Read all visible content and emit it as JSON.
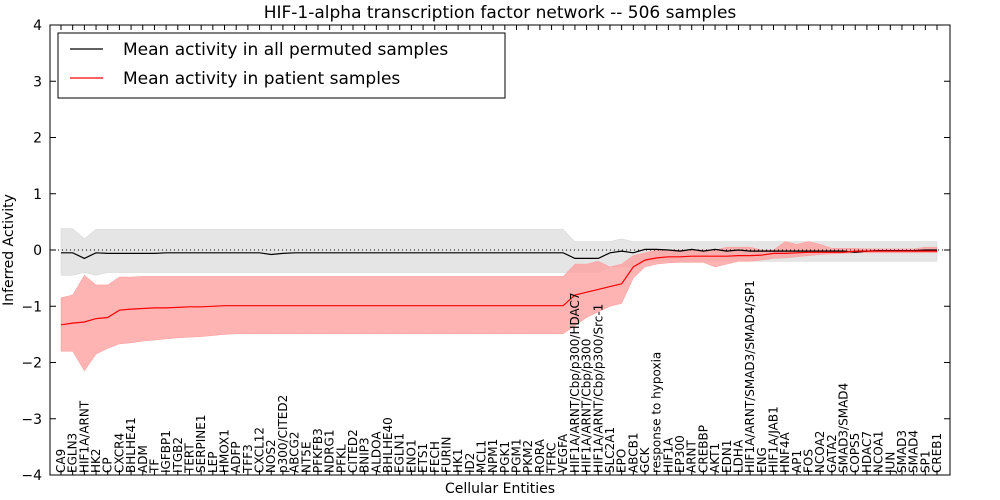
{
  "chart_data": {
    "type": "line",
    "title": "HIF-1-alpha transcription factor network -- 506 samples",
    "xlabel": "Cellular Entities",
    "ylabel": "Inferred Activity",
    "ylim": [
      -4,
      4
    ],
    "yticks": [
      "−4",
      "−3",
      "−2",
      "−1",
      "0",
      "1",
      "2",
      "3",
      "4"
    ],
    "legend_position": "top-left",
    "categories": [
      "CA9",
      "EGLN3",
      "HIF1A/ARNT",
      "HK2",
      "CP",
      "CXCR4",
      "BHLHE41",
      "ADM",
      "TF",
      "IGFBP1",
      "ITGB2",
      "TERT",
      "SERPINE1",
      "LEP",
      "HMOX1",
      "ADFP",
      "TFF3",
      "CXCL12",
      "NOS2",
      "p300/CITED2",
      "ABCG2",
      "NT5E",
      "PFKFB3",
      "NDRG1",
      "PFKL",
      "CITED2",
      "BNIP3",
      "ALDOA",
      "BHLHE40",
      "EGLN1",
      "ENO1",
      "ETS1",
      "FECH",
      "FURIN",
      "HK1",
      "ID2",
      "MCL1",
      "NPM1",
      "PGK1",
      "PGM1",
      "PKM2",
      "RORA",
      "TFRC",
      "VEGFA",
      "HIF1A/ARNT/Cbp/p300/HDAC7",
      "HIF1A/ARNT/Cbp/p300",
      "HIF1A/ARNT/Cbp/p300/Src-1",
      "SLC2A1",
      "EPO",
      "ABCB1",
      "GCK",
      "response to hypoxia",
      "HIF1A",
      "EP300",
      "ARNT",
      "CREBBP",
      "AKT1",
      "EDN1",
      "LDHA",
      "HIF1A/ARNT/SMAD3/SMAD4/SP1",
      "ENG",
      "HIF1A/JAB1",
      "HNF4A",
      "AP1",
      "FOS",
      "NCOA2",
      "GATA2",
      "SMAD3/SMAD4",
      "COPS5",
      "HDAC7",
      "NCOA1",
      "JUN",
      "SMAD3",
      "SMAD4",
      "SP1",
      "CREB1"
    ],
    "series": [
      {
        "name": "Mean activity in all permuted samples",
        "color": "#000000",
        "band_color": "#d3d3d3",
        "values": [
          -0.05,
          -0.05,
          -0.15,
          -0.05,
          -0.06,
          -0.06,
          -0.06,
          -0.06,
          -0.06,
          -0.05,
          -0.05,
          -0.05,
          -0.05,
          -0.05,
          -0.05,
          -0.05,
          -0.05,
          -0.05,
          -0.08,
          -0.06,
          -0.05,
          -0.05,
          -0.05,
          -0.05,
          -0.05,
          -0.05,
          -0.05,
          -0.05,
          -0.05,
          -0.05,
          -0.05,
          -0.05,
          -0.05,
          -0.05,
          -0.05,
          -0.05,
          -0.05,
          -0.05,
          -0.05,
          -0.05,
          -0.05,
          -0.05,
          -0.05,
          -0.05,
          -0.15,
          -0.15,
          -0.15,
          -0.05,
          -0.02,
          -0.05,
          0.01,
          0.01,
          0.0,
          -0.02,
          0.01,
          -0.02,
          0.01,
          -0.02,
          0.0,
          -0.02,
          -0.02,
          -0.02,
          -0.02,
          -0.02,
          -0.02,
          -0.02,
          -0.02,
          -0.02,
          -0.04,
          -0.02,
          -0.01,
          -0.01,
          -0.01,
          -0.01,
          0.0,
          0.0
        ],
        "lower": [
          -0.45,
          -0.45,
          -0.4,
          -0.45,
          -0.4,
          -0.4,
          -0.4,
          -0.4,
          -0.4,
          -0.4,
          -0.4,
          -0.4,
          -0.4,
          -0.4,
          -0.4,
          -0.4,
          -0.4,
          -0.4,
          -0.4,
          -0.4,
          -0.4,
          -0.4,
          -0.4,
          -0.4,
          -0.4,
          -0.4,
          -0.4,
          -0.4,
          -0.4,
          -0.4,
          -0.4,
          -0.4,
          -0.4,
          -0.4,
          -0.4,
          -0.4,
          -0.4,
          -0.4,
          -0.4,
          -0.4,
          -0.4,
          -0.4,
          -0.4,
          -0.4,
          -0.4,
          -0.4,
          -0.4,
          -0.3,
          -0.3,
          -0.3,
          -0.2,
          -0.2,
          -0.2,
          -0.2,
          -0.2,
          -0.2,
          -0.2,
          -0.2,
          -0.2,
          -0.2,
          -0.2,
          -0.2,
          -0.2,
          -0.2,
          -0.2,
          -0.2,
          -0.2,
          -0.2,
          -0.2,
          -0.2,
          -0.2,
          -0.2,
          -0.2,
          -0.2,
          -0.2,
          -0.2
        ],
        "upper": [
          0.38,
          0.38,
          0.2,
          0.37,
          0.37,
          0.37,
          0.37,
          0.37,
          0.37,
          0.37,
          0.37,
          0.37,
          0.37,
          0.37,
          0.37,
          0.37,
          0.37,
          0.37,
          0.37,
          0.37,
          0.37,
          0.37,
          0.37,
          0.37,
          0.37,
          0.37,
          0.37,
          0.37,
          0.37,
          0.37,
          0.37,
          0.37,
          0.37,
          0.37,
          0.37,
          0.37,
          0.37,
          0.37,
          0.37,
          0.37,
          0.37,
          0.37,
          0.37,
          0.37,
          0.15,
          0.15,
          0.15,
          0.15,
          0.2,
          0.15,
          0.15,
          0.15,
          0.15,
          0.15,
          0.15,
          0.15,
          0.15,
          0.15,
          0.15,
          0.15,
          0.15,
          0.15,
          0.15,
          0.15,
          0.15,
          0.15,
          0.15,
          0.15,
          0.15,
          0.15,
          0.15,
          0.15,
          0.15,
          0.15,
          0.15,
          0.15
        ]
      },
      {
        "name": "Mean activity in patient samples",
        "color": "#ff0000",
        "band_color": "#ff9b9b",
        "values": [
          -1.33,
          -1.3,
          -1.28,
          -1.22,
          -1.2,
          -1.07,
          -1.05,
          -1.04,
          -1.03,
          -1.03,
          -1.02,
          -1.01,
          -1.01,
          -1.0,
          -0.99,
          -0.99,
          -0.99,
          -0.99,
          -0.99,
          -0.99,
          -0.99,
          -0.99,
          -0.99,
          -0.99,
          -0.99,
          -0.99,
          -0.99,
          -0.99,
          -0.99,
          -0.99,
          -0.99,
          -0.99,
          -0.99,
          -0.99,
          -0.99,
          -0.99,
          -0.99,
          -0.99,
          -0.99,
          -0.99,
          -0.99,
          -0.99,
          -0.99,
          -0.99,
          -0.8,
          -0.75,
          -0.7,
          -0.65,
          -0.6,
          -0.3,
          -0.18,
          -0.14,
          -0.12,
          -0.12,
          -0.11,
          -0.11,
          -0.11,
          -0.11,
          -0.1,
          -0.1,
          -0.09,
          -0.06,
          -0.06,
          -0.05,
          -0.04,
          -0.04,
          -0.04,
          -0.04,
          -0.02,
          -0.02,
          -0.02,
          -0.02,
          -0.02,
          -0.02,
          -0.02,
          -0.02
        ],
        "lower": [
          -1.8,
          -1.8,
          -2.15,
          -1.85,
          -1.75,
          -1.67,
          -1.65,
          -1.62,
          -1.6,
          -1.58,
          -1.56,
          -1.55,
          -1.54,
          -1.52,
          -1.5,
          -1.49,
          -1.49,
          -1.49,
          -1.49,
          -1.49,
          -1.49,
          -1.49,
          -1.49,
          -1.49,
          -1.49,
          -1.49,
          -1.49,
          -1.49,
          -1.49,
          -1.49,
          -1.49,
          -1.49,
          -1.49,
          -1.49,
          -1.49,
          -1.49,
          -1.49,
          -1.49,
          -1.49,
          -1.49,
          -1.49,
          -1.49,
          -1.49,
          -1.49,
          -1.35,
          -1.2,
          -1.1,
          -1.0,
          -0.95,
          -0.5,
          -0.3,
          -0.25,
          -0.23,
          -0.22,
          -0.22,
          -0.22,
          -0.3,
          -0.25,
          -0.2,
          -0.2,
          -0.18,
          -0.15,
          -0.14,
          -0.12,
          -0.1,
          -0.08,
          -0.07,
          -0.06,
          -0.05,
          -0.05,
          -0.05,
          -0.05,
          -0.05,
          -0.05,
          -0.05,
          -0.05
        ],
        "upper": [
          -0.85,
          -0.8,
          -0.45,
          -0.62,
          -0.62,
          -0.48,
          -0.48,
          -0.47,
          -0.47,
          -0.47,
          -0.47,
          -0.47,
          -0.47,
          -0.47,
          -0.47,
          -0.47,
          -0.47,
          -0.47,
          -0.47,
          -0.47,
          -0.47,
          -0.47,
          -0.47,
          -0.47,
          -0.47,
          -0.47,
          -0.47,
          -0.47,
          -0.47,
          -0.47,
          -0.47,
          -0.47,
          -0.47,
          -0.47,
          -0.47,
          -0.47,
          -0.47,
          -0.47,
          -0.47,
          -0.47,
          -0.47,
          -0.47,
          -0.47,
          -0.47,
          -0.25,
          -0.25,
          -0.2,
          -0.3,
          -0.25,
          -0.1,
          -0.05,
          0.0,
          0.0,
          0.0,
          0.0,
          0.0,
          0.0,
          0.05,
          0.05,
          0.05,
          0.0,
          0.0,
          0.15,
          0.1,
          0.15,
          0.1,
          0.03,
          0.03,
          0.03,
          0.02,
          0.02,
          0.02,
          0.02,
          0.02,
          0.05,
          0.05
        ]
      }
    ],
    "baseline": {
      "value": 0,
      "style": "dotted"
    }
  }
}
